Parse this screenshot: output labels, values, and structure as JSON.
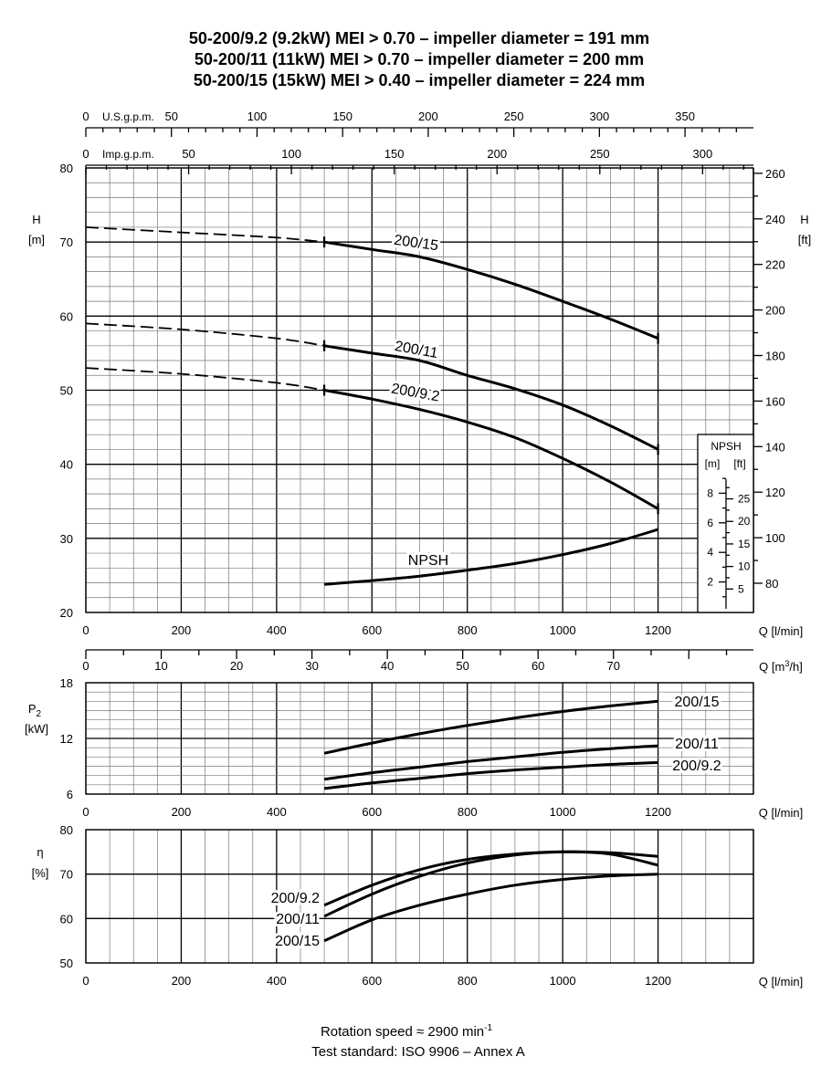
{
  "title_lines": [
    "50-200/9.2 (9.2kW) MEI > 0.70 – impeller diameter = 191 mm",
    "50-200/11  (11kW)  MEI > 0.70 – impeller diameter = 200 mm",
    "50-200/15  (15kW)  MEI > 0.40 – impeller diameter = 224 mm"
  ],
  "footer": {
    "speed_text": "Rotation speed ≈ 2900 min",
    "speed_sup": "-1",
    "standard": "Test standard: ISO 9906 – Annex A"
  },
  "top_axes": {
    "usgpm_label": "U.S.g.p.m.",
    "usgpm_ticks": [
      "0",
      "50",
      "100",
      "150",
      "200",
      "250",
      "300",
      "350"
    ],
    "impgpm_label": "Imp.g.p.m.",
    "impgpm_ticks": [
      "0",
      "50",
      "100",
      "150",
      "200",
      "250",
      "300"
    ]
  },
  "q_axis": {
    "label": "Q [l/min]",
    "ticks": [
      "0",
      "200",
      "400",
      "600",
      "800",
      "1000",
      "1200"
    ],
    "m3h_label_prefix": "Q [m",
    "m3h_label_sup": "3",
    "m3h_label_suffix": "/h]",
    "m3h_ticks": [
      "0",
      "10",
      "20",
      "30",
      "40",
      "50",
      "60",
      "70"
    ]
  },
  "head_panel": {
    "ylabel": "H",
    "yunit": "[m]",
    "yticks": [
      "20",
      "30",
      "40",
      "50",
      "60",
      "70",
      "80"
    ],
    "right_label": "H",
    "right_unit": "[ft]",
    "right_ticks": [
      "80",
      "100",
      "120",
      "140",
      "160",
      "180",
      "200",
      "220",
      "240",
      "260"
    ],
    "npsh_box": {
      "title": "NPSH",
      "unit_m": "[m]",
      "unit_ft": "[ft]",
      "m_ticks": [
        "2",
        "4",
        "6",
        "8"
      ],
      "ft_ticks": [
        "5",
        "10",
        "15",
        "20",
        "25"
      ]
    }
  },
  "power_panel": {
    "ylabel": "P",
    "ylabel_sub": "2",
    "yunit": "[kW]",
    "yticks": [
      "6",
      "12",
      "18"
    ]
  },
  "eff_panel": {
    "ylabel": "η",
    "yunit": "[%]",
    "yticks": [
      "50",
      "60",
      "70",
      "80"
    ]
  },
  "chart_data": [
    {
      "type": "line",
      "title": "",
      "xlabel": "Q [l/min]",
      "ylabel": "H [m]",
      "xlim": [
        0,
        1400
      ],
      "ylim": [
        20,
        80
      ],
      "grid": true,
      "series": [
        {
          "name": "200/15",
          "x": [
            0,
            200,
            400,
            500,
            600,
            700,
            800,
            900,
            1000,
            1100,
            1200
          ],
          "y": [
            72,
            71.3,
            70.6,
            70,
            69,
            68,
            66.3,
            64.3,
            62,
            59.6,
            57
          ],
          "solid_from": 500
        },
        {
          "name": "200/11",
          "x": [
            0,
            200,
            400,
            500,
            600,
            700,
            800,
            900,
            1000,
            1100,
            1200
          ],
          "y": [
            59,
            58.2,
            57,
            56,
            55,
            54,
            52,
            50.2,
            48,
            45.2,
            42
          ],
          "solid_from": 500
        },
        {
          "name": "200/9.2",
          "x": [
            0,
            200,
            400,
            500,
            600,
            700,
            800,
            900,
            1000,
            1100,
            1200
          ],
          "y": [
            53,
            52.2,
            51,
            50,
            48.8,
            47.4,
            45.7,
            43.6,
            40.8,
            37.6,
            34
          ],
          "solid_from": 500
        },
        {
          "name": "NPSH",
          "x": [
            500,
            600,
            700,
            800,
            900,
            1000,
            1100,
            1200
          ],
          "y": [
            23.8,
            24.3,
            24.9,
            25.7,
            26.6,
            27.8,
            29.3,
            31.2
          ]
        }
      ]
    },
    {
      "type": "line",
      "title": "",
      "xlabel": "Q [l/min]",
      "ylabel": "P2 [kW]",
      "xlim": [
        0,
        1400
      ],
      "ylim": [
        6,
        18
      ],
      "grid": true,
      "series": [
        {
          "name": "200/15",
          "x": [
            500,
            600,
            700,
            800,
            900,
            1000,
            1100,
            1200
          ],
          "y": [
            10.4,
            11.5,
            12.5,
            13.4,
            14.2,
            14.9,
            15.5,
            16
          ]
        },
        {
          "name": "200/11",
          "x": [
            500,
            600,
            700,
            800,
            900,
            1000,
            1100,
            1200
          ],
          "y": [
            7.6,
            8.3,
            8.9,
            9.5,
            10,
            10.5,
            10.9,
            11.2
          ]
        },
        {
          "name": "200/9.2",
          "x": [
            500,
            600,
            700,
            800,
            900,
            1000,
            1100,
            1200
          ],
          "y": [
            6.6,
            7.2,
            7.7,
            8.2,
            8.6,
            8.9,
            9.2,
            9.4
          ]
        }
      ]
    },
    {
      "type": "line",
      "title": "",
      "xlabel": "Q [l/min]",
      "ylabel": "η [%]",
      "xlim": [
        0,
        1400
      ],
      "ylim": [
        50,
        80
      ],
      "grid": true,
      "series": [
        {
          "name": "200/9.2",
          "x": [
            500,
            600,
            700,
            800,
            900,
            1000,
            1100,
            1200
          ],
          "y": [
            63,
            67.5,
            71,
            73.3,
            74.5,
            75,
            74.5,
            72
          ]
        },
        {
          "name": "200/11",
          "x": [
            500,
            600,
            700,
            800,
            900,
            1000,
            1100,
            1200
          ],
          "y": [
            60.5,
            65.5,
            69.5,
            72.5,
            74.3,
            75,
            74.8,
            74
          ]
        },
        {
          "name": "200/15",
          "x": [
            500,
            600,
            700,
            800,
            900,
            1000,
            1100,
            1200
          ],
          "y": [
            55,
            59.7,
            63,
            65.5,
            67.5,
            68.8,
            69.6,
            70
          ]
        }
      ]
    }
  ]
}
